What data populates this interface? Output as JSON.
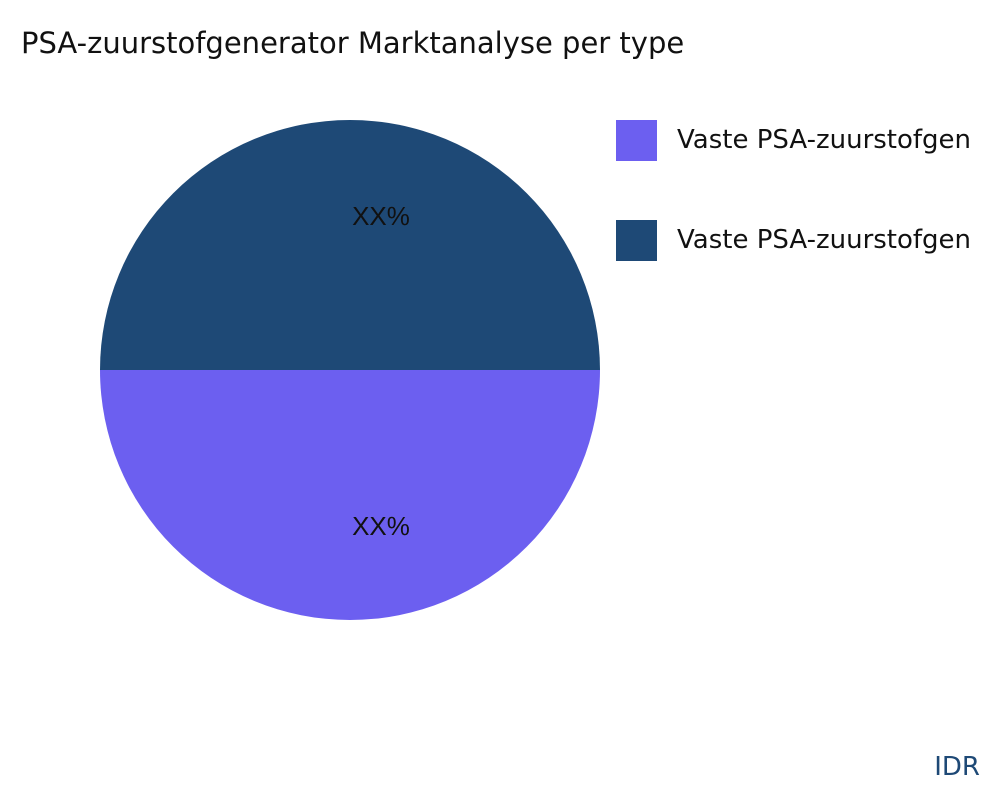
{
  "chart_data": {
    "type": "pie",
    "title": "PSA-zuurstofgenerator Marktanalyse per type",
    "slices": [
      {
        "label": "Vaste PSA-zuurstofgen",
        "value": 50,
        "data_label": "XX%",
        "color": "#6c5ff0"
      },
      {
        "label": "Vaste PSA-zuurstofgen",
        "value": 50,
        "data_label": "XX%",
        "color": "#1e4976"
      }
    ],
    "legend_placement": "right"
  },
  "brand": "IDR"
}
